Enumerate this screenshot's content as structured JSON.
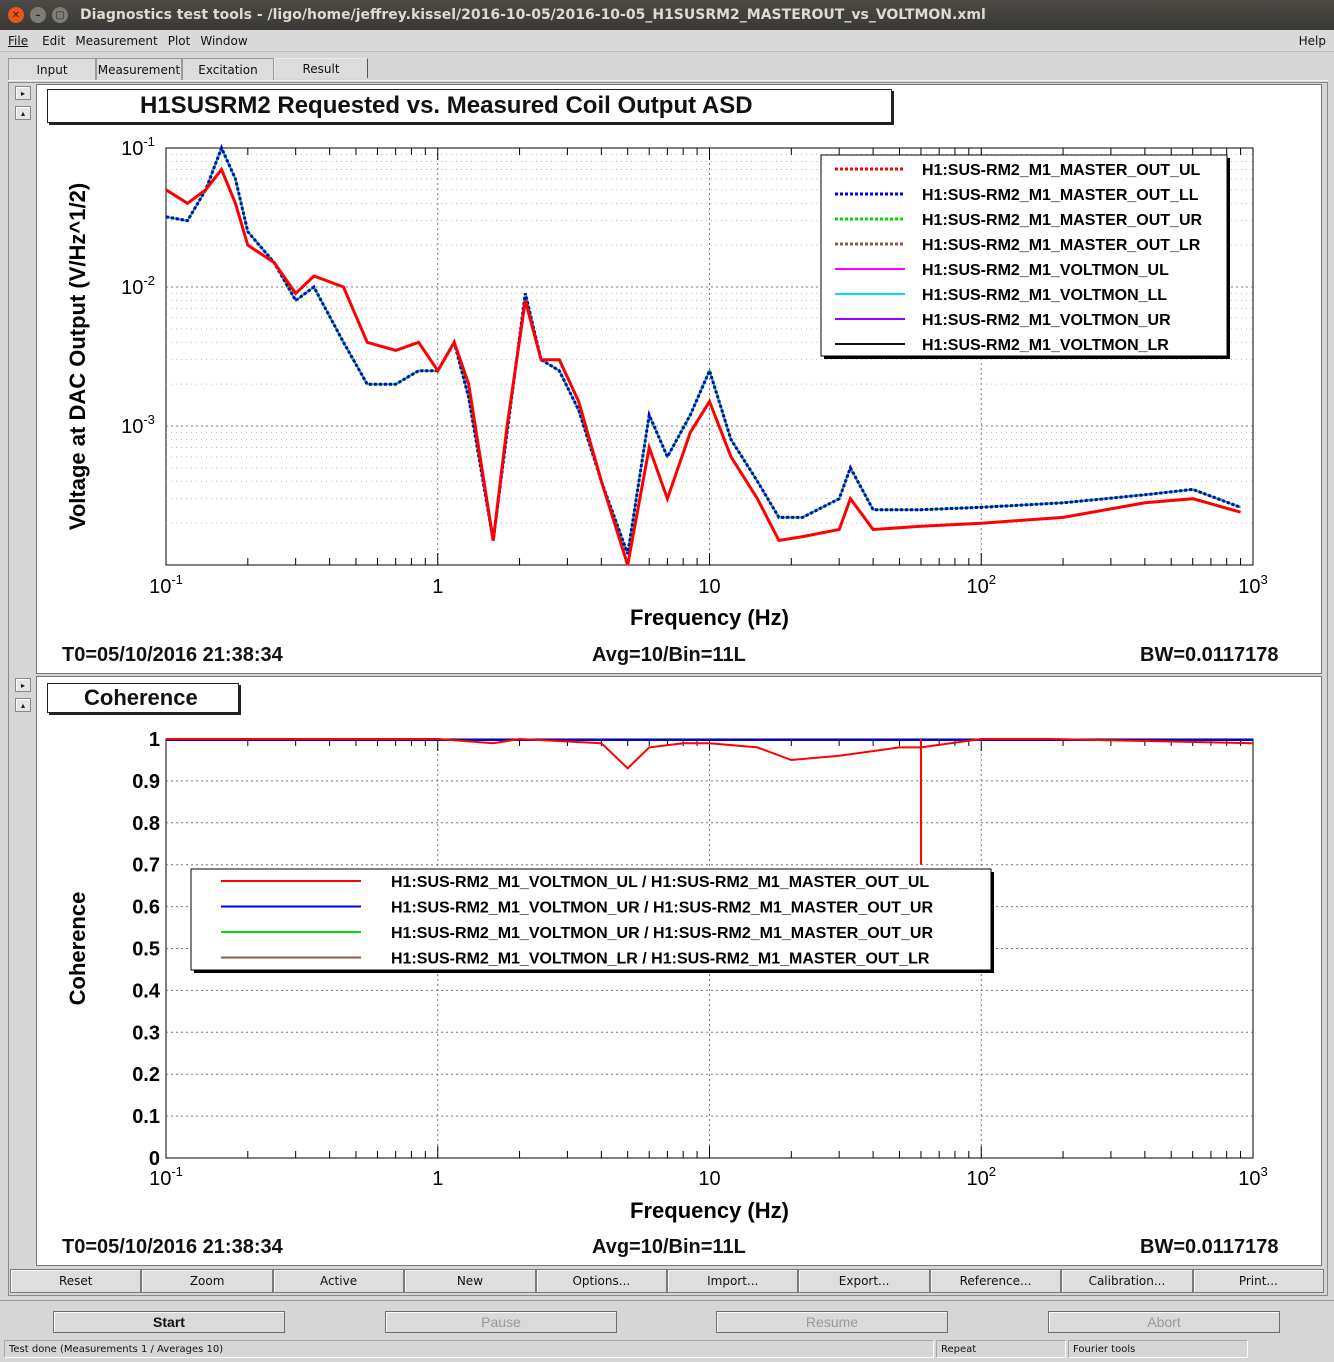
{
  "window": {
    "title": "Diagnostics test tools - /ligo/home/jeffrey.kissel/2016-10-05/2016-10-05_H1SUSRM2_MASTEROUT_vs_VOLTMON.xml"
  },
  "menu": {
    "file": "File",
    "edit": "Edit",
    "measurement": "Measurement",
    "plot": "Plot",
    "window": "Window",
    "help": "Help"
  },
  "tabs": [
    "Input",
    "Measurement",
    "Excitation",
    "Result"
  ],
  "active_tab": "Result",
  "nav": {
    "up": "▸",
    "down": "▴"
  },
  "plot1": {
    "title": "H1SUSRM2 Requested vs. Measured Coil Output ASD",
    "info_t0": "T0=05/10/2016 21:38:34",
    "info_avg": "Avg=10/Bin=11L",
    "info_bw": "BW=0.0117178"
  },
  "plot2": {
    "title": "Coherence",
    "info_t0": "T0=05/10/2016 21:38:34",
    "info_avg": "Avg=10/Bin=11L",
    "info_bw": "BW=0.0117178"
  },
  "chart_data": [
    {
      "type": "line",
      "title": "H1SUSRM2 Requested vs. Measured Coil Output ASD",
      "xlabel": "Frequency (Hz)",
      "ylabel": "Voltage at DAC Output (V/Hz^1/2)",
      "xscale": "log",
      "yscale": "log",
      "xlim": [
        0.1,
        1000
      ],
      "ylim": [
        0.0001,
        0.1
      ],
      "x_ticks": [
        "10^-1",
        "1",
        "10",
        "10^2",
        "10^3"
      ],
      "y_ticks": [
        "10^-3",
        "10^-2",
        "10^-1"
      ],
      "grid": true,
      "legend_position": "top-right",
      "series": [
        {
          "name": "H1:SUS-RM2_M1_MASTER_OUT_UL",
          "color": "#ff0000",
          "style": "dotted"
        },
        {
          "name": "H1:SUS-RM2_M1_MASTER_OUT_LL",
          "color": "#0000ee",
          "style": "dotted"
        },
        {
          "name": "H1:SUS-RM2_M1_MASTER_OUT_UR",
          "color": "#00dd00",
          "style": "dotted"
        },
        {
          "name": "H1:SUS-RM2_M1_MASTER_OUT_LR",
          "color": "#8b5a4a",
          "style": "dotted"
        },
        {
          "name": "H1:SUS-RM2_M1_VOLTMON_UL",
          "color": "#ff00ff",
          "style": "solid"
        },
        {
          "name": "H1:SUS-RM2_M1_VOLTMON_LL",
          "color": "#00e0e0",
          "style": "solid"
        },
        {
          "name": "H1:SUS-RM2_M1_VOLTMON_UR",
          "color": "#9900ff",
          "style": "solid"
        },
        {
          "name": "H1:SUS-RM2_M1_VOLTMON_LR",
          "color": "#111111",
          "style": "solid"
        }
      ],
      "curves": {
        "x": [
          0.1,
          0.12,
          0.14,
          0.16,
          0.18,
          0.2,
          0.25,
          0.3,
          0.35,
          0.45,
          0.55,
          0.7,
          0.85,
          1.0,
          1.15,
          1.3,
          1.6,
          1.8,
          2.1,
          2.4,
          2.8,
          3.3,
          4.0,
          5.0,
          6.0,
          7.0,
          8.5,
          10,
          12,
          15,
          18,
          22,
          30,
          33,
          40,
          60,
          100,
          200,
          400,
          600,
          900
        ],
        "red": [
          0.05,
          0.04,
          0.05,
          0.07,
          0.04,
          0.02,
          0.015,
          0.009,
          0.012,
          0.01,
          0.004,
          0.0035,
          0.004,
          0.0025,
          0.004,
          0.002,
          0.00015,
          0.001,
          0.008,
          0.003,
          0.003,
          0.0015,
          0.0004,
          0.0001,
          0.0007,
          0.0003,
          0.0009,
          0.0015,
          0.0006,
          0.0003,
          0.00015,
          0.00016,
          0.00018,
          0.0003,
          0.00018,
          0.00019,
          0.0002,
          0.00022,
          0.00028,
          0.0003,
          0.00024
        ],
        "blue": [
          0.032,
          0.03,
          0.05,
          0.1,
          0.06,
          0.025,
          0.015,
          0.008,
          0.01,
          0.004,
          0.002,
          0.002,
          0.0025,
          0.0025,
          0.004,
          0.0016,
          0.00015,
          0.0009,
          0.009,
          0.003,
          0.0025,
          0.0013,
          0.0004,
          0.00012,
          0.0012,
          0.0006,
          0.0012,
          0.0025,
          0.0008,
          0.0004,
          0.00022,
          0.00022,
          0.0003,
          0.0005,
          0.00025,
          0.00025,
          0.00026,
          0.00028,
          0.00032,
          0.00035,
          0.00026
        ]
      }
    },
    {
      "type": "line",
      "title": "Coherence",
      "xlabel": "Frequency (Hz)",
      "ylabel": "Coherence",
      "xscale": "log",
      "xlim": [
        0.1,
        1000
      ],
      "ylim": [
        0,
        1
      ],
      "x_ticks": [
        "10^-1",
        "1",
        "10",
        "10^2",
        "10^3"
      ],
      "y_ticks": [
        "0",
        "0.1",
        "0.2",
        "0.3",
        "0.4",
        "0.5",
        "0.6",
        "0.7",
        "0.8",
        "0.9",
        "1"
      ],
      "grid": true,
      "legend_position": "center-left",
      "series": [
        {
          "name": "H1:SUS-RM2_M1_VOLTMON_UL / H1:SUS-RM2_M1_MASTER_OUT_UL",
          "color": "#ff0000"
        },
        {
          "name": "H1:SUS-RM2_M1_VOLTMON_UR / H1:SUS-RM2_M1_MASTER_OUT_UR",
          "color": "#0000ee"
        },
        {
          "name": "H1:SUS-RM2_M1_VOLTMON_UR / H1:SUS-RM2_M1_MASTER_OUT_UR",
          "color": "#00dd00"
        },
        {
          "name": "H1:SUS-RM2_M1_VOLTMON_LR / H1:SUS-RM2_M1_MASTER_OUT_LR",
          "color": "#8b5a4a"
        }
      ],
      "curves": {
        "x": [
          0.1,
          1,
          1.6,
          2,
          4,
          5,
          6,
          8,
          10,
          15,
          20,
          30,
          50,
          60,
          100,
          180,
          1000
        ],
        "red": [
          1.0,
          1.0,
          0.99,
          1.0,
          0.99,
          0.93,
          0.98,
          0.99,
          0.99,
          0.98,
          0.95,
          0.96,
          0.98,
          0.98,
          1.0,
          1.0,
          0.99
        ]
      },
      "dip": {
        "x": 60,
        "y": 0.7
      }
    }
  ],
  "buttons": [
    "Reset",
    "Zoom",
    "Active",
    "New",
    "Options...",
    "Import...",
    "Export...",
    "Reference...",
    "Calibration...",
    "Print..."
  ],
  "controls": {
    "start": "Start",
    "pause": "Pause",
    "resume": "Resume",
    "abort": "Abort"
  },
  "status": {
    "main": "Test done (Measurements 1 / Averages 10)",
    "repeat": "Repeat",
    "fourier": "Fourier tools"
  }
}
